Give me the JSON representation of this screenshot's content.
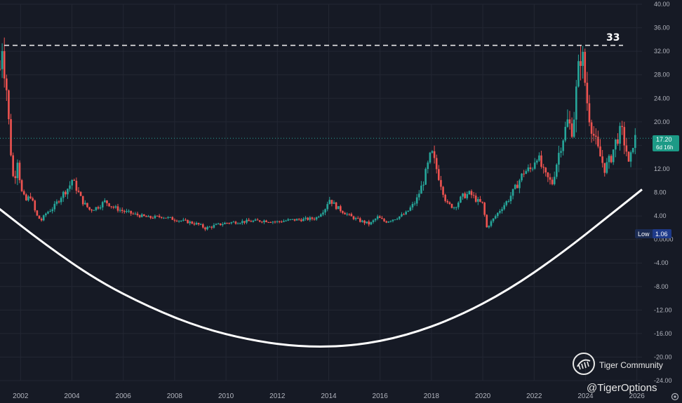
{
  "chart_data": {
    "type": "candlestick",
    "title": "",
    "xlabel": "",
    "ylabel": "",
    "grid": true,
    "y_axis_position": "right",
    "ylim": [
      -24,
      40
    ],
    "xlim": [
      2001.2,
      2026.2
    ],
    "x_ticks": [
      "2002",
      "2004",
      "2006",
      "2008",
      "2010",
      "2012",
      "2014",
      "2016",
      "2018",
      "2020",
      "2022",
      "2024",
      "2026"
    ],
    "y_ticks": [
      "40.00",
      "36.00",
      "32.00",
      "28.00",
      "24.00",
      "20.00",
      "16.00",
      "12.00",
      "8.00",
      "4.00",
      "0.0000",
      "-4.00",
      "-8.00",
      "-12.00",
      "-16.00",
      "-20.00",
      "-24.00"
    ],
    "up_color": "#26a69a",
    "down_color": "#ef5350",
    "price_series": [
      {
        "t": 2001.2,
        "v": 29.0
      },
      {
        "t": 2001.28,
        "v": 33.5
      },
      {
        "t": 2001.35,
        "v": 30.0
      },
      {
        "t": 2001.42,
        "v": 27.0
      },
      {
        "t": 2001.5,
        "v": 24.0
      },
      {
        "t": 2001.58,
        "v": 16.0
      },
      {
        "t": 2001.66,
        "v": 14.0
      },
      {
        "t": 2001.75,
        "v": 8.0
      },
      {
        "t": 2001.85,
        "v": 15.0
      },
      {
        "t": 2001.95,
        "v": 11.0
      },
      {
        "t": 2002.05,
        "v": 8.0
      },
      {
        "t": 2002.2,
        "v": 6.5
      },
      {
        "t": 2002.4,
        "v": 7.5
      },
      {
        "t": 2002.6,
        "v": 4.2
      },
      {
        "t": 2002.8,
        "v": 3.2
      },
      {
        "t": 2003.0,
        "v": 4.5
      },
      {
        "t": 2003.3,
        "v": 5.5
      },
      {
        "t": 2003.6,
        "v": 7.5
      },
      {
        "t": 2003.9,
        "v": 9.0
      },
      {
        "t": 2004.0,
        "v": 10.2
      },
      {
        "t": 2004.2,
        "v": 8.5
      },
      {
        "t": 2004.4,
        "v": 6.5
      },
      {
        "t": 2004.7,
        "v": 5.0
      },
      {
        "t": 2005.0,
        "v": 5.5
      },
      {
        "t": 2005.3,
        "v": 6.5
      },
      {
        "t": 2005.6,
        "v": 5.5
      },
      {
        "t": 2006.0,
        "v": 4.8
      },
      {
        "t": 2006.5,
        "v": 4.2
      },
      {
        "t": 2007.0,
        "v": 3.7
      },
      {
        "t": 2007.5,
        "v": 3.9
      },
      {
        "t": 2008.0,
        "v": 3.4
      },
      {
        "t": 2008.5,
        "v": 3.0
      },
      {
        "t": 2008.9,
        "v": 2.6
      },
      {
        "t": 2009.2,
        "v": 1.9
      },
      {
        "t": 2009.6,
        "v": 2.4
      },
      {
        "t": 2010.0,
        "v": 2.8
      },
      {
        "t": 2010.5,
        "v": 3.0
      },
      {
        "t": 2011.0,
        "v": 3.1
      },
      {
        "t": 2011.5,
        "v": 3.2
      },
      {
        "t": 2012.0,
        "v": 3.0
      },
      {
        "t": 2012.5,
        "v": 3.3
      },
      {
        "t": 2013.0,
        "v": 3.4
      },
      {
        "t": 2013.5,
        "v": 3.6
      },
      {
        "t": 2013.9,
        "v": 5.5
      },
      {
        "t": 2014.0,
        "v": 7.0
      },
      {
        "t": 2014.3,
        "v": 5.5
      },
      {
        "t": 2014.6,
        "v": 4.6
      },
      {
        "t": 2014.9,
        "v": 3.8
      },
      {
        "t": 2015.2,
        "v": 3.2
      },
      {
        "t": 2015.6,
        "v": 2.6
      },
      {
        "t": 2015.9,
        "v": 3.8
      },
      {
        "t": 2016.2,
        "v": 3.0
      },
      {
        "t": 2016.6,
        "v": 3.6
      },
      {
        "t": 2017.0,
        "v": 4.4
      },
      {
        "t": 2017.4,
        "v": 6.5
      },
      {
        "t": 2017.7,
        "v": 10.0
      },
      {
        "t": 2018.0,
        "v": 14.8
      },
      {
        "t": 2018.2,
        "v": 12.0
      },
      {
        "t": 2018.4,
        "v": 9.0
      },
      {
        "t": 2018.6,
        "v": 6.0
      },
      {
        "t": 2018.9,
        "v": 5.5
      },
      {
        "t": 2019.2,
        "v": 7.3
      },
      {
        "t": 2019.5,
        "v": 7.8
      },
      {
        "t": 2019.8,
        "v": 6.5
      },
      {
        "t": 2020.0,
        "v": 6.0
      },
      {
        "t": 2020.15,
        "v": 2.0
      },
      {
        "t": 2020.4,
        "v": 3.4
      },
      {
        "t": 2020.7,
        "v": 5.2
      },
      {
        "t": 2021.0,
        "v": 6.8
      },
      {
        "t": 2021.3,
        "v": 9.0
      },
      {
        "t": 2021.6,
        "v": 11.5
      },
      {
        "t": 2021.9,
        "v": 12.0
      },
      {
        "t": 2022.1,
        "v": 14.5
      },
      {
        "t": 2022.4,
        "v": 11.0
      },
      {
        "t": 2022.7,
        "v": 9.5
      },
      {
        "t": 2023.0,
        "v": 15.5
      },
      {
        "t": 2023.3,
        "v": 20.0
      },
      {
        "t": 2023.5,
        "v": 18.5
      },
      {
        "t": 2023.7,
        "v": 28.0
      },
      {
        "t": 2023.85,
        "v": 32.5
      },
      {
        "t": 2023.95,
        "v": 28.0
      },
      {
        "t": 2024.1,
        "v": 22.0
      },
      {
        "t": 2024.3,
        "v": 18.0
      },
      {
        "t": 2024.5,
        "v": 15.0
      },
      {
        "t": 2024.75,
        "v": 12.0
      },
      {
        "t": 2025.0,
        "v": 14.0
      },
      {
        "t": 2025.2,
        "v": 17.0
      },
      {
        "t": 2025.4,
        "v": 18.5
      },
      {
        "t": 2025.6,
        "v": 15.0
      },
      {
        "t": 2025.7,
        "v": 12.0
      },
      {
        "t": 2025.85,
        "v": 16.5
      },
      {
        "t": 2025.95,
        "v": 17.2
      }
    ],
    "annotations": {
      "resistance_level": 33,
      "resistance_label": "33",
      "last_price": 17.2,
      "last_price_label": "17.20",
      "countdown_label": "6d 16h",
      "low_value": 1.06,
      "low_tag_label": "Low",
      "low_value_label": "1.06",
      "bowl_curve": [
        {
          "t": 2001.0,
          "v": 5.8
        },
        {
          "t": 2003.0,
          "v": -1.0
        },
        {
          "t": 2005.0,
          "v": -7.0
        },
        {
          "t": 2007.0,
          "v": -11.5
        },
        {
          "t": 2009.0,
          "v": -15.0
        },
        {
          "t": 2011.0,
          "v": -17.2
        },
        {
          "t": 2013.0,
          "v": -18.3
        },
        {
          "t": 2015.0,
          "v": -18.1
        },
        {
          "t": 2017.0,
          "v": -16.4
        },
        {
          "t": 2019.0,
          "v": -13.2
        },
        {
          "t": 2021.0,
          "v": -8.6
        },
        {
          "t": 2023.0,
          "v": -2.6
        },
        {
          "t": 2025.0,
          "v": 4.3
        },
        {
          "t": 2026.2,
          "v": 8.5
        }
      ]
    }
  },
  "watermark": {
    "community_label": "Tiger Community",
    "handle_label": "@TigerOptions"
  }
}
